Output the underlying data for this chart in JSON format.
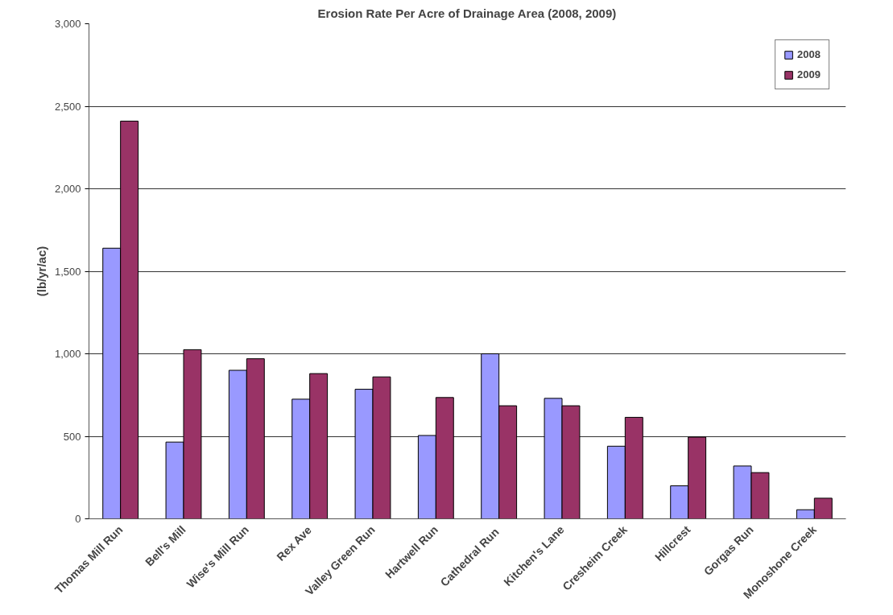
{
  "chart_data": {
    "type": "bar",
    "title": "Erosion Rate Per Acre of Drainage Area (2008, 2009)",
    "ylabel": "(lb/yr/ac)",
    "categories": [
      "Thomas Mill Run",
      "Bell's Mill",
      "Wise's Mill Run",
      "Rex Ave",
      "Valley Green Run",
      "Hartwell Run",
      "Cathedral  Run",
      "Kitchen's Lane",
      "Cresheim Creek",
      "Hillcrest",
      "Gorgas Run",
      "Monoshone Creek"
    ],
    "series": [
      {
        "name": "2008",
        "color": "#9999ff",
        "values": [
          1640,
          465,
          900,
          725,
          785,
          505,
          1000,
          730,
          440,
          200,
          320,
          55
        ]
      },
      {
        "name": "2009",
        "color": "#993366",
        "values": [
          2410,
          1025,
          970,
          880,
          860,
          735,
          685,
          685,
          615,
          495,
          280,
          125
        ]
      }
    ],
    "ylim": [
      0,
      3000
    ],
    "yticks": [
      {
        "value": 0,
        "label": "0"
      },
      {
        "value": 500,
        "label": "500"
      },
      {
        "value": 1000,
        "label": "1,000"
      },
      {
        "value": 1500,
        "label": "1,500"
      },
      {
        "value": 2000,
        "label": "2,000"
      },
      {
        "value": 2500,
        "label": "2,500"
      },
      {
        "value": 3000,
        "label": "3,000"
      }
    ],
    "grid": "y",
    "legend": "top right"
  }
}
